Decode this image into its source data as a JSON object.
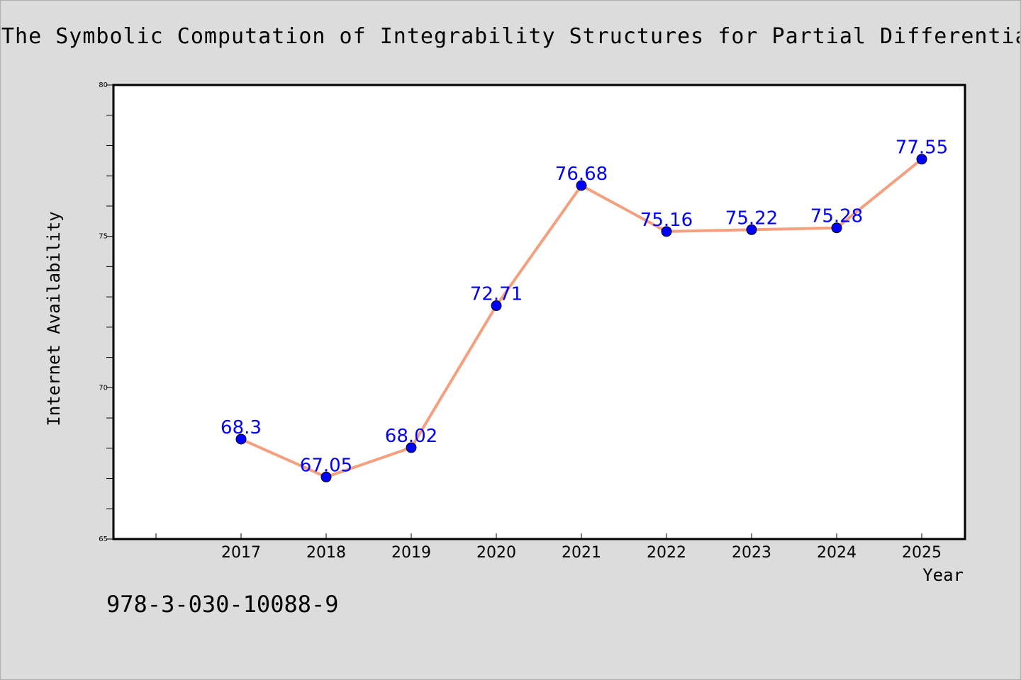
{
  "title": "The Symbolic Computation of Integrability Structures for Partial Differential Eq",
  "footer_text": "978-3-030-10088-9",
  "colors": {
    "background": "#dcdcdc",
    "plot_background": "#ffffff",
    "line": "#f4a07f",
    "marker": "#0000ff",
    "data_label": "#0000ff"
  },
  "chart_data": {
    "type": "line",
    "x": [
      "2017",
      "2018",
      "2019",
      "2020",
      "2021",
      "2022",
      "2023",
      "2024",
      "2025"
    ],
    "series": [
      {
        "values": [
          68.3,
          67.05,
          68.02,
          72.71,
          76.68,
          75.16,
          75.22,
          75.28,
          77.55
        ],
        "labels": [
          "68.3",
          "67.05",
          "68.02",
          "72.71",
          "76.68",
          "75.16",
          "75.22",
          "75.28",
          "77.55"
        ]
      }
    ],
    "xlabel": "Year",
    "ylabel": "Internet Availability",
    "ylim": [
      65,
      80
    ],
    "yticks": [
      "65",
      "70",
      "75",
      "80"
    ],
    "grid": false,
    "legend": "none"
  }
}
